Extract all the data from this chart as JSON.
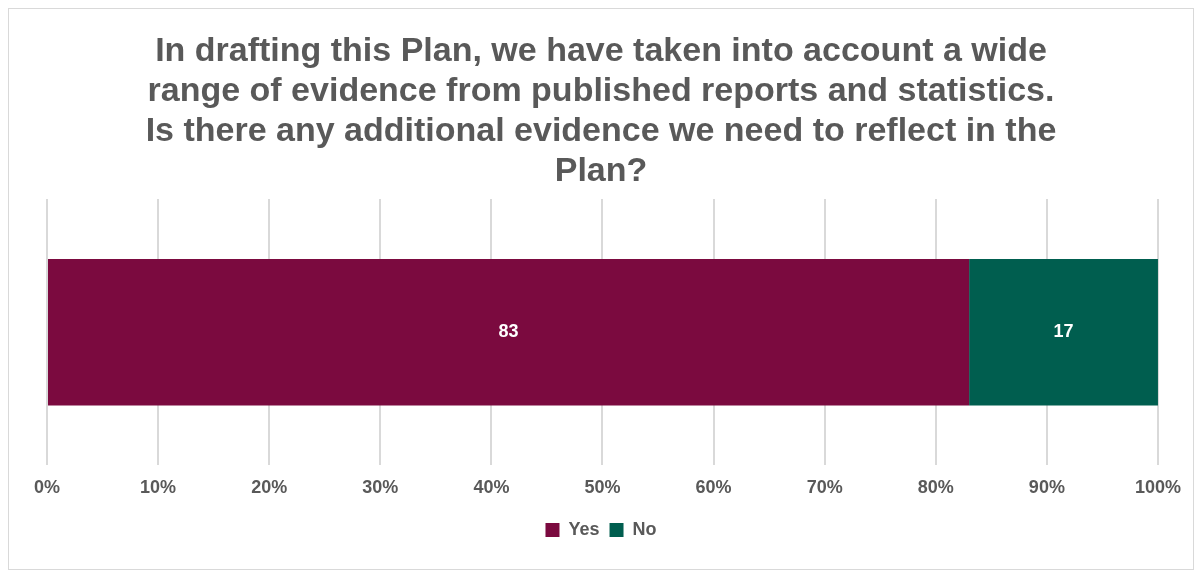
{
  "chart_data": {
    "type": "bar",
    "title": "In drafting this Plan, we have taken into account a wide range of evidence from published reports and statistics. Is there any additional evidence we need to reflect in the Plan?",
    "orientation": "horizontal",
    "stacked": true,
    "categories": [
      null
    ],
    "series": [
      {
        "name": "Yes",
        "color": "#7b0a3f",
        "values": [
          83
        ]
      },
      {
        "name": "No",
        "color": "#005e4f",
        "values": [
          17
        ]
      }
    ],
    "xlim": [
      0,
      100
    ],
    "xticks": [
      {
        "value": 0,
        "label": "0%"
      },
      {
        "value": 10,
        "label": "10%"
      },
      {
        "value": 20,
        "label": "20%"
      },
      {
        "value": 30,
        "label": "30%"
      },
      {
        "value": 40,
        "label": "40%"
      },
      {
        "value": 50,
        "label": "50%"
      },
      {
        "value": 60,
        "label": "60%"
      },
      {
        "value": 70,
        "label": "70%"
      },
      {
        "value": 80,
        "label": "80%"
      },
      {
        "value": 90,
        "label": "90%"
      },
      {
        "value": 100,
        "label": "100%"
      }
    ],
    "grid": "x",
    "legend": "bottom",
    "data_labels": true,
    "tick_labels": "x"
  }
}
